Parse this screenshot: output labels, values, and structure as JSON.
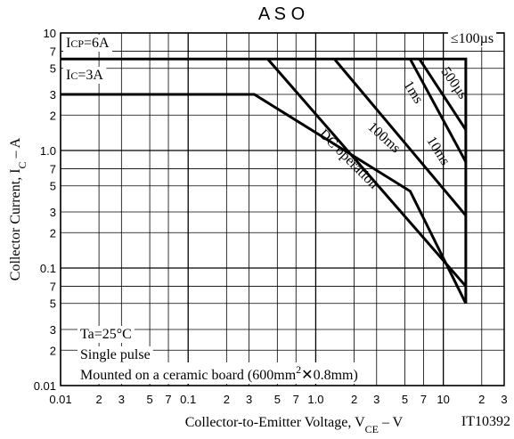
{
  "chart_data": {
    "type": "line",
    "title": "A S O",
    "xlabel": [
      "Collector-to-Emitter Voltage, V",
      "CE",
      " – V"
    ],
    "ylabel": [
      "Collector Current, I",
      "C",
      " – A"
    ],
    "log_x": true,
    "log_y": true,
    "grid": true,
    "xlim": [
      0.01,
      30
    ],
    "ylim": [
      0.01,
      10
    ],
    "xticks": [
      0.01,
      {
        "value": 0.02,
        "label": "2"
      },
      {
        "value": 0.03,
        "label": "3"
      },
      {
        "value": 0.05,
        "label": "5"
      },
      {
        "value": 0.07,
        "label": "7"
      },
      0.1,
      {
        "value": 0.2,
        "label": "2"
      },
      {
        "value": 0.3,
        "label": "3"
      },
      {
        "value": 0.5,
        "label": "5"
      },
      {
        "value": 0.7,
        "label": "7"
      },
      {
        "value": 1,
        "label": "1.0"
      },
      2,
      3,
      5,
      7,
      10,
      {
        "value": 20,
        "label": "2"
      },
      {
        "value": 30,
        "label": "3"
      }
    ],
    "yticks": [
      0.01,
      {
        "value": 0.02,
        "label": "2"
      },
      {
        "value": 0.03,
        "label": "3"
      },
      {
        "value": 0.05,
        "label": "5"
      },
      {
        "value": 0.07,
        "label": "7"
      },
      0.1,
      {
        "value": 0.2,
        "label": "2"
      },
      {
        "value": 0.3,
        "label": "3"
      },
      {
        "value": 0.5,
        "label": "5"
      },
      {
        "value": 0.7,
        "label": "7"
      },
      {
        "value": 1,
        "label": "1.0"
      },
      2,
      3,
      5,
      7,
      10
    ],
    "series": [
      {
        "name": "DC operation",
        "color": "#000000",
        "x": [
          0.01,
          0.33,
          5.5,
          15
        ],
        "values": [
          3,
          3,
          0.45,
          0.05
        ]
      },
      {
        "name": "100ms",
        "color": "#000000",
        "x": [
          0.42,
          15
        ],
        "values": [
          6,
          0.07
        ]
      },
      {
        "name": "10ms",
        "color": "#000000",
        "x": [
          1.4,
          15
        ],
        "values": [
          6,
          0.28
        ]
      },
      {
        "name": "1ms",
        "color": "#000000",
        "x": [
          5.5,
          15
        ],
        "values": [
          6,
          0.8
        ]
      },
      {
        "name": "500µs",
        "color": "#000000",
        "x": [
          6.5,
          15
        ],
        "values": [
          6,
          1.5
        ]
      },
      {
        "name": "≤100µs",
        "color": "#000000",
        "x": [
          0.01,
          15,
          15
        ],
        "values": [
          6,
          6,
          0.05
        ]
      }
    ],
    "annotations": {
      "icp": [
        "I",
        "CP",
        "=6A"
      ],
      "ic": [
        "I",
        "C",
        "=3A"
      ],
      "ta": "Ta=25°C",
      "pulse": "Single pulse",
      "board": [
        "Mounted on a ceramic board (600mm",
        "2",
        "✕0.8mm)"
      ],
      "code": "IT10392"
    }
  }
}
